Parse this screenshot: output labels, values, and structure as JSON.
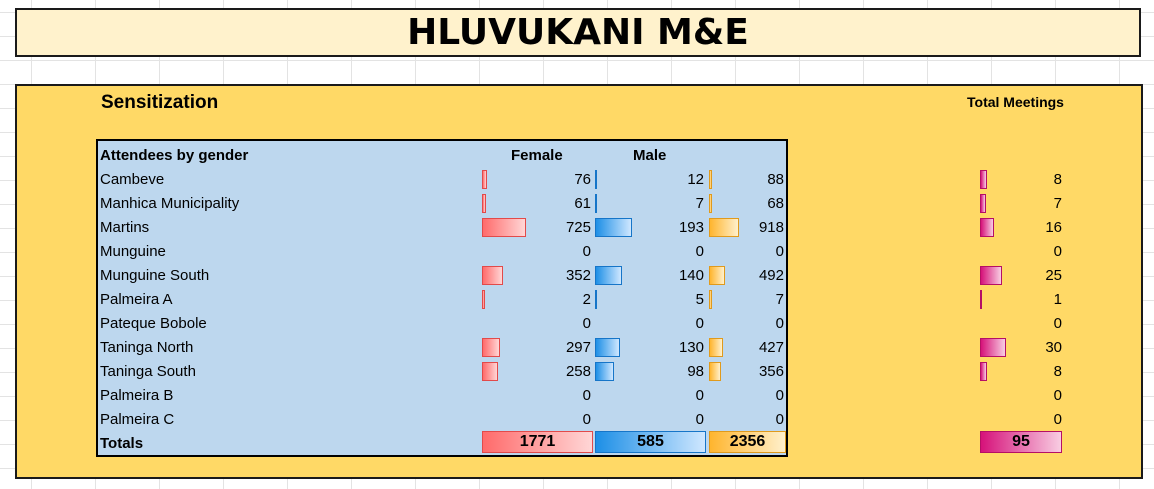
{
  "title": "HLUVUKANI M&E",
  "section_title": "Sensitization",
  "meetings_title": "Total Meetings",
  "table": {
    "header_label": "Attendees by gender",
    "col_female": "Female",
    "col_male": "Male",
    "rows": [
      {
        "name": "Cambeve",
        "female": "76",
        "male": "12",
        "total": "88",
        "meetings": "8"
      },
      {
        "name": "Manhica Municipality",
        "female": "61",
        "male": "7",
        "total": "68",
        "meetings": "7"
      },
      {
        "name": "Martins",
        "female": "725",
        "male": "193",
        "total": "918",
        "meetings": "16"
      },
      {
        "name": "Munguine",
        "female": "0",
        "male": "0",
        "total": "0",
        "meetings": "0"
      },
      {
        "name": "Munguine South",
        "female": "352",
        "male": "140",
        "total": "492",
        "meetings": "25"
      },
      {
        "name": "Palmeira A",
        "female": "2",
        "male": "5",
        "total": "7",
        "meetings": "1"
      },
      {
        "name": "Pateque Bobole",
        "female": "0",
        "male": "0",
        "total": "0",
        "meetings": "0"
      },
      {
        "name": "Taninga North",
        "female": "297",
        "male": "130",
        "total": "427",
        "meetings": "30"
      },
      {
        "name": "Taninga South",
        "female": "258",
        "male": "98",
        "total": "356",
        "meetings": "8"
      },
      {
        "name": "Palmeira B",
        "female": "0",
        "male": "0",
        "total": "0",
        "meetings": "0"
      },
      {
        "name": "Palmeira C",
        "female": "0",
        "male": "0",
        "total": "0",
        "meetings": "0"
      }
    ],
    "totals": {
      "label": "Totals",
      "female": "1771",
      "male": "585",
      "total": "2356",
      "meetings": "95"
    }
  },
  "colors": {
    "female_bar": "#ff6b6b",
    "male_bar": "#1d8fe6",
    "total_bar": "#ffb52e",
    "meetings_bar": "#d6127a",
    "panel": "#ffd966",
    "table": "#bdd7ee",
    "title_bg": "#fff2cc"
  }
}
